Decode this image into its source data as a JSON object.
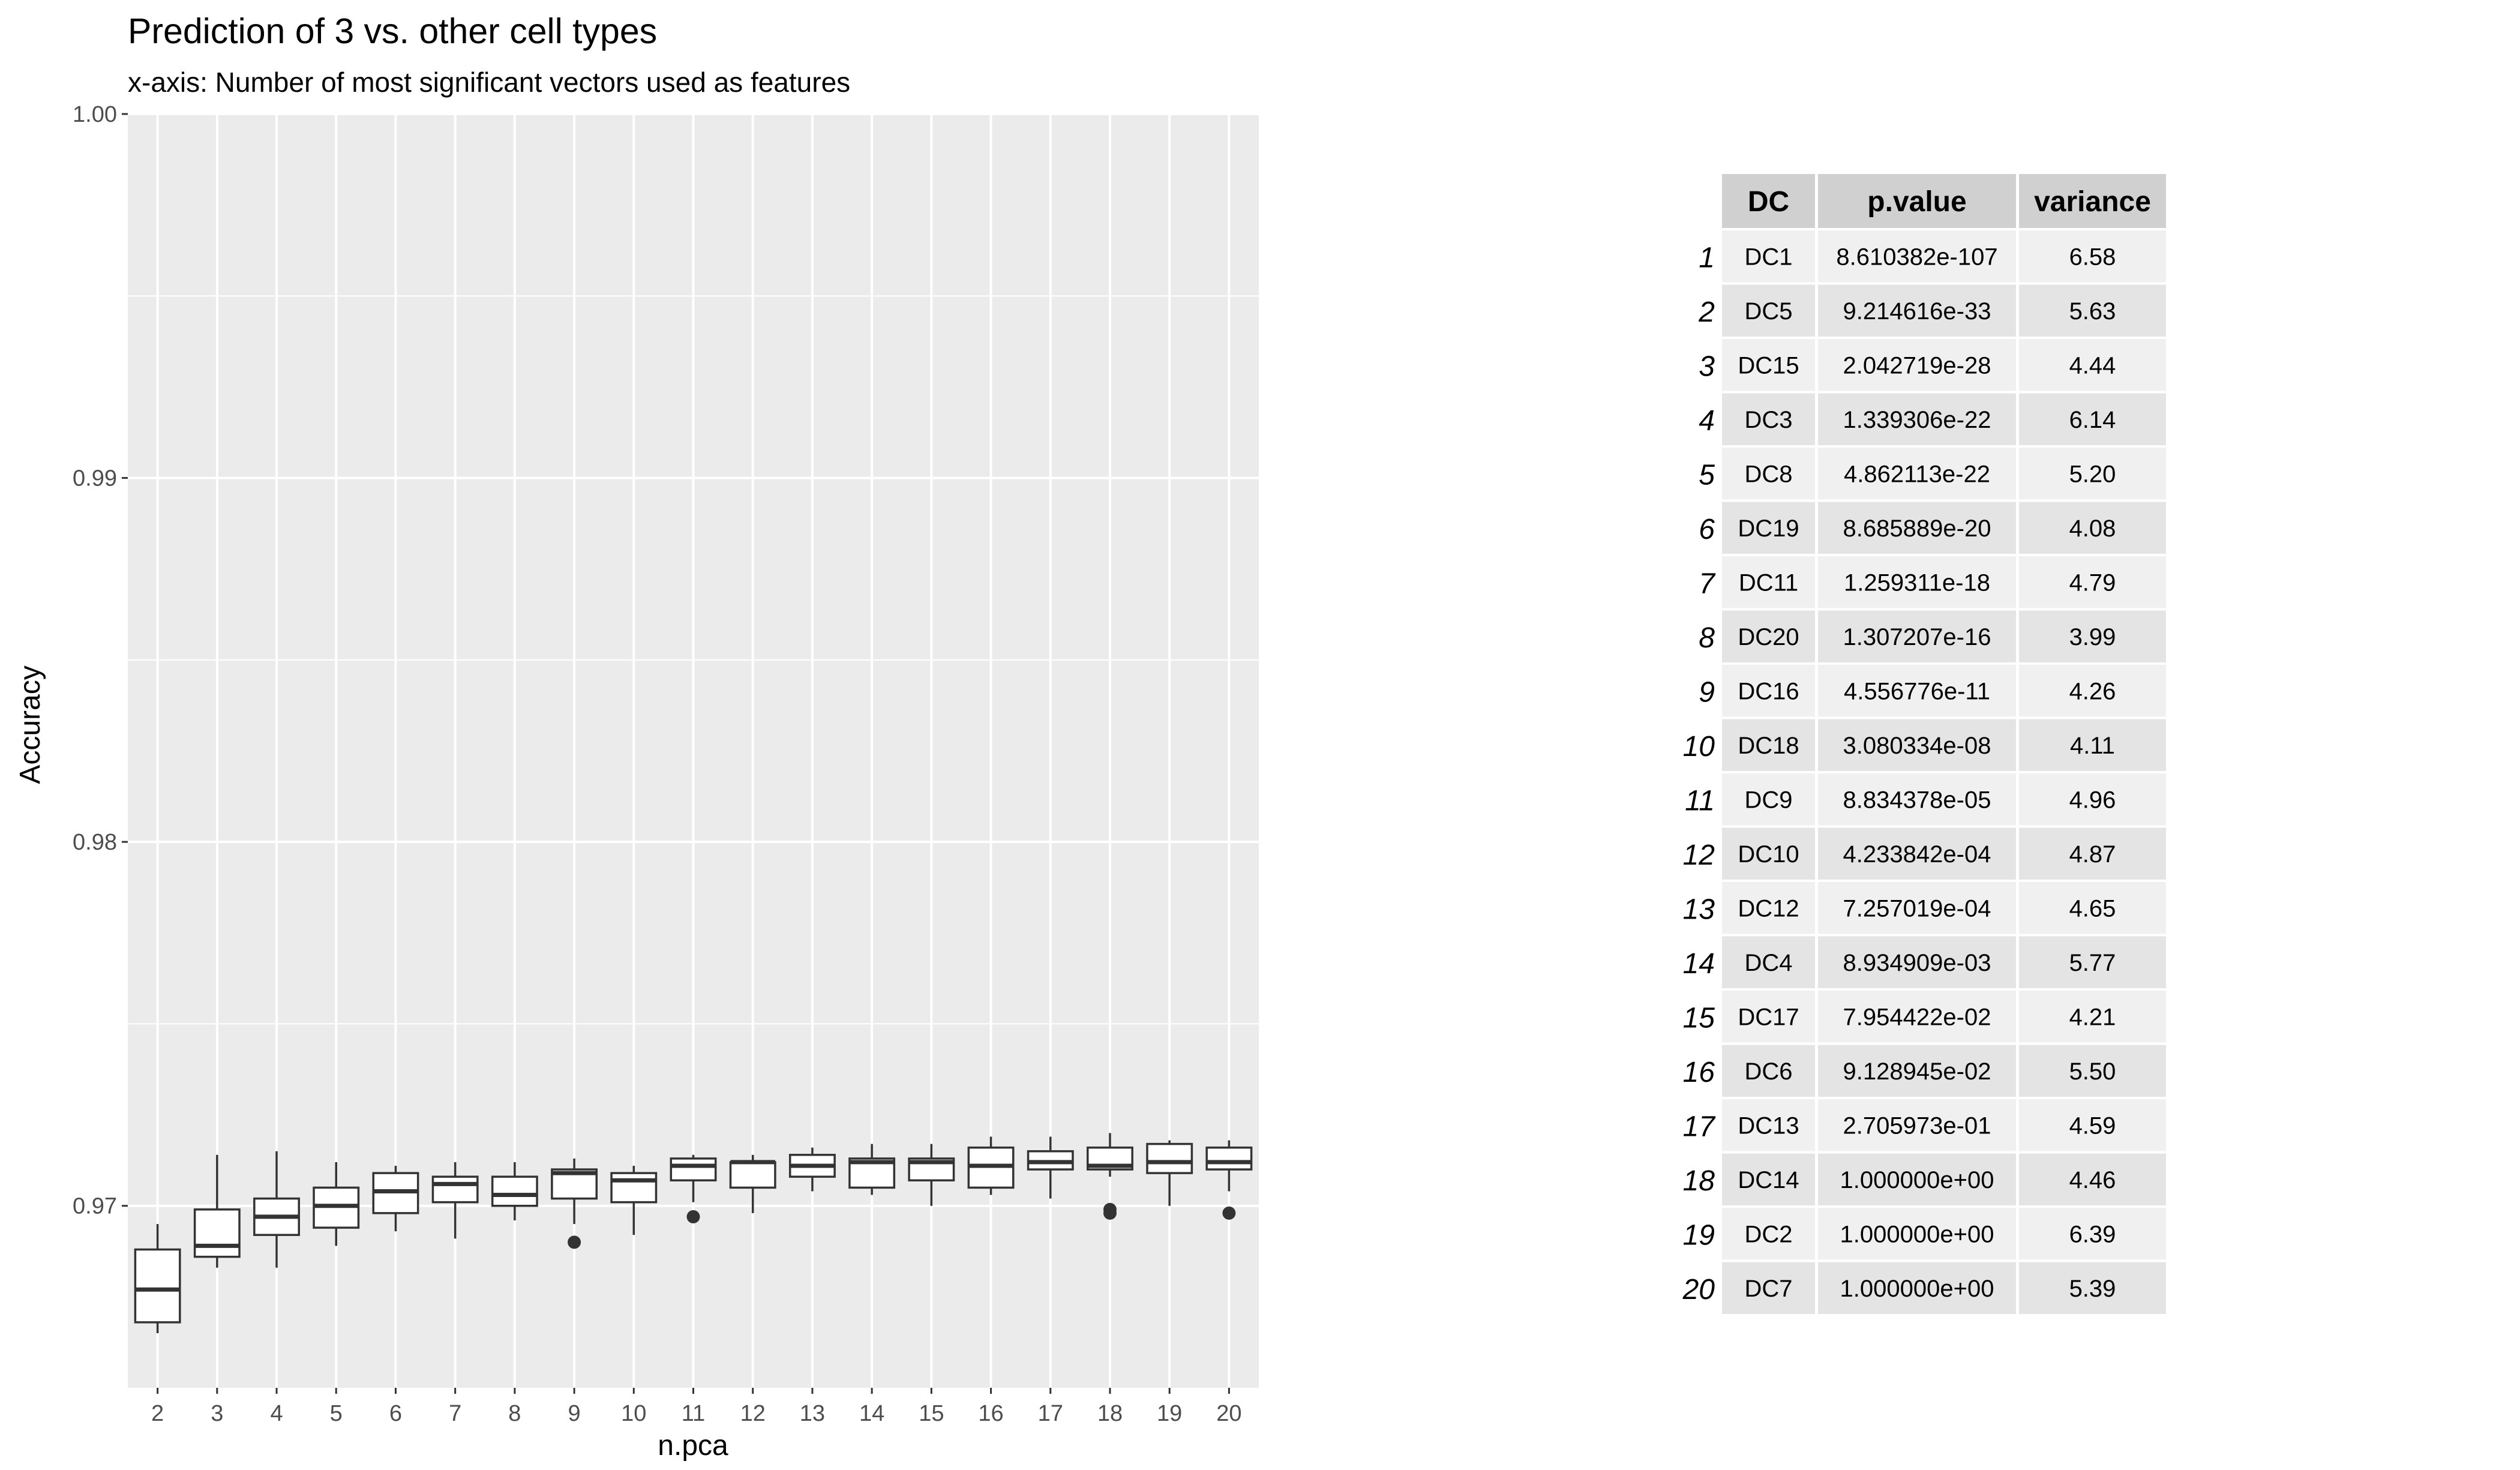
{
  "chart_data": {
    "type": "boxplot",
    "title": "Prediction of 3 vs. other cell types",
    "subtitle": "x-axis: Number of most significant vectors used as features",
    "xlabel": "n.pca",
    "ylabel": "Accuracy",
    "ylim": [
      0.965,
      1.0
    ],
    "yticks": [
      "0.97",
      "0.98",
      "0.99",
      "1.00"
    ],
    "grid": true,
    "categories": [
      "2",
      "3",
      "4",
      "5",
      "6",
      "7",
      "8",
      "9",
      "10",
      "11",
      "12",
      "13",
      "14",
      "15",
      "16",
      "17",
      "18",
      "19",
      "20"
    ],
    "boxes": [
      {
        "x": "2",
        "low": 0.9665,
        "q1": 0.9668,
        "median": 0.9677,
        "q3": 0.9688,
        "high": 0.9695,
        "outliers": []
      },
      {
        "x": "3",
        "low": 0.9683,
        "q1": 0.9686,
        "median": 0.9689,
        "q3": 0.9699,
        "high": 0.9714,
        "outliers": []
      },
      {
        "x": "4",
        "low": 0.9683,
        "q1": 0.9692,
        "median": 0.9697,
        "q3": 0.9702,
        "high": 0.9715,
        "outliers": []
      },
      {
        "x": "5",
        "low": 0.9689,
        "q1": 0.9694,
        "median": 0.97,
        "q3": 0.9705,
        "high": 0.9712,
        "outliers": []
      },
      {
        "x": "6",
        "low": 0.9693,
        "q1": 0.9698,
        "median": 0.9704,
        "q3": 0.9709,
        "high": 0.9711,
        "outliers": []
      },
      {
        "x": "7",
        "low": 0.9691,
        "q1": 0.9701,
        "median": 0.9706,
        "q3": 0.9708,
        "high": 0.9712,
        "outliers": []
      },
      {
        "x": "8",
        "low": 0.9696,
        "q1": 0.97,
        "median": 0.9703,
        "q3": 0.9708,
        "high": 0.9712,
        "outliers": []
      },
      {
        "x": "9",
        "low": 0.9695,
        "q1": 0.9702,
        "median": 0.9709,
        "q3": 0.971,
        "high": 0.9713,
        "outliers": [
          0.969
        ]
      },
      {
        "x": "10",
        "low": 0.9692,
        "q1": 0.9701,
        "median": 0.9707,
        "q3": 0.9709,
        "high": 0.9711,
        "outliers": []
      },
      {
        "x": "11",
        "low": 0.9701,
        "q1": 0.9707,
        "median": 0.9711,
        "q3": 0.9713,
        "high": 0.9714,
        "outliers": [
          0.9697
        ]
      },
      {
        "x": "12",
        "low": 0.9698,
        "q1": 0.9705,
        "median": 0.9712,
        "q3": 0.9712,
        "high": 0.9714,
        "outliers": []
      },
      {
        "x": "13",
        "low": 0.9704,
        "q1": 0.9708,
        "median": 0.9711,
        "q3": 0.9714,
        "high": 0.9716,
        "outliers": []
      },
      {
        "x": "14",
        "low": 0.9703,
        "q1": 0.9705,
        "median": 0.9712,
        "q3": 0.9713,
        "high": 0.9717,
        "outliers": []
      },
      {
        "x": "15",
        "low": 0.97,
        "q1": 0.9707,
        "median": 0.9712,
        "q3": 0.9713,
        "high": 0.9717,
        "outliers": []
      },
      {
        "x": "16",
        "low": 0.9703,
        "q1": 0.9705,
        "median": 0.9711,
        "q3": 0.9716,
        "high": 0.9719,
        "outliers": []
      },
      {
        "x": "17",
        "low": 0.9702,
        "q1": 0.971,
        "median": 0.9712,
        "q3": 0.9715,
        "high": 0.9719,
        "outliers": []
      },
      {
        "x": "18",
        "low": 0.9708,
        "q1": 0.971,
        "median": 0.9711,
        "q3": 0.9716,
        "high": 0.972,
        "outliers": [
          0.9698,
          0.9699
        ]
      },
      {
        "x": "19",
        "low": 0.97,
        "q1": 0.9709,
        "median": 0.9712,
        "q3": 0.9717,
        "high": 0.9718,
        "outliers": []
      },
      {
        "x": "20",
        "low": 0.9704,
        "q1": 0.971,
        "median": 0.9712,
        "q3": 0.9716,
        "high": 0.9718,
        "outliers": [
          0.9698
        ]
      }
    ],
    "colors": {
      "panel_bg": "#ebebeb",
      "grid": "#ffffff",
      "box_fill": "#ffffff",
      "box_stroke": "#333333",
      "table_header_bg": "#d0d0d0",
      "table_row_dark": "#e4e4e4",
      "table_row_light": "#f0f0f0"
    }
  },
  "table": {
    "headers": [
      "DC",
      "p.value",
      "variance"
    ],
    "rows": [
      {
        "n": "1",
        "dc": "DC1",
        "p": "8.610382e-107",
        "v": "6.58"
      },
      {
        "n": "2",
        "dc": "DC5",
        "p": "9.214616e-33",
        "v": "5.63"
      },
      {
        "n": "3",
        "dc": "DC15",
        "p": "2.042719e-28",
        "v": "4.44"
      },
      {
        "n": "4",
        "dc": "DC3",
        "p": "1.339306e-22",
        "v": "6.14"
      },
      {
        "n": "5",
        "dc": "DC8",
        "p": "4.862113e-22",
        "v": "5.20"
      },
      {
        "n": "6",
        "dc": "DC19",
        "p": "8.685889e-20",
        "v": "4.08"
      },
      {
        "n": "7",
        "dc": "DC11",
        "p": "1.259311e-18",
        "v": "4.79"
      },
      {
        "n": "8",
        "dc": "DC20",
        "p": "1.307207e-16",
        "v": "3.99"
      },
      {
        "n": "9",
        "dc": "DC16",
        "p": "4.556776e-11",
        "v": "4.26"
      },
      {
        "n": "10",
        "dc": "DC18",
        "p": "3.080334e-08",
        "v": "4.11"
      },
      {
        "n": "11",
        "dc": "DC9",
        "p": "8.834378e-05",
        "v": "4.96"
      },
      {
        "n": "12",
        "dc": "DC10",
        "p": "4.233842e-04",
        "v": "4.87"
      },
      {
        "n": "13",
        "dc": "DC12",
        "p": "7.257019e-04",
        "v": "4.65"
      },
      {
        "n": "14",
        "dc": "DC4",
        "p": "8.934909e-03",
        "v": "5.77"
      },
      {
        "n": "15",
        "dc": "DC17",
        "p": "7.954422e-02",
        "v": "4.21"
      },
      {
        "n": "16",
        "dc": "DC6",
        "p": "9.128945e-02",
        "v": "5.50"
      },
      {
        "n": "17",
        "dc": "DC13",
        "p": "2.705973e-01",
        "v": "4.59"
      },
      {
        "n": "18",
        "dc": "DC14",
        "p": "1.000000e+00",
        "v": "4.46"
      },
      {
        "n": "19",
        "dc": "DC2",
        "p": "1.000000e+00",
        "v": "6.39"
      },
      {
        "n": "20",
        "dc": "DC7",
        "p": "1.000000e+00",
        "v": "5.39"
      }
    ]
  }
}
